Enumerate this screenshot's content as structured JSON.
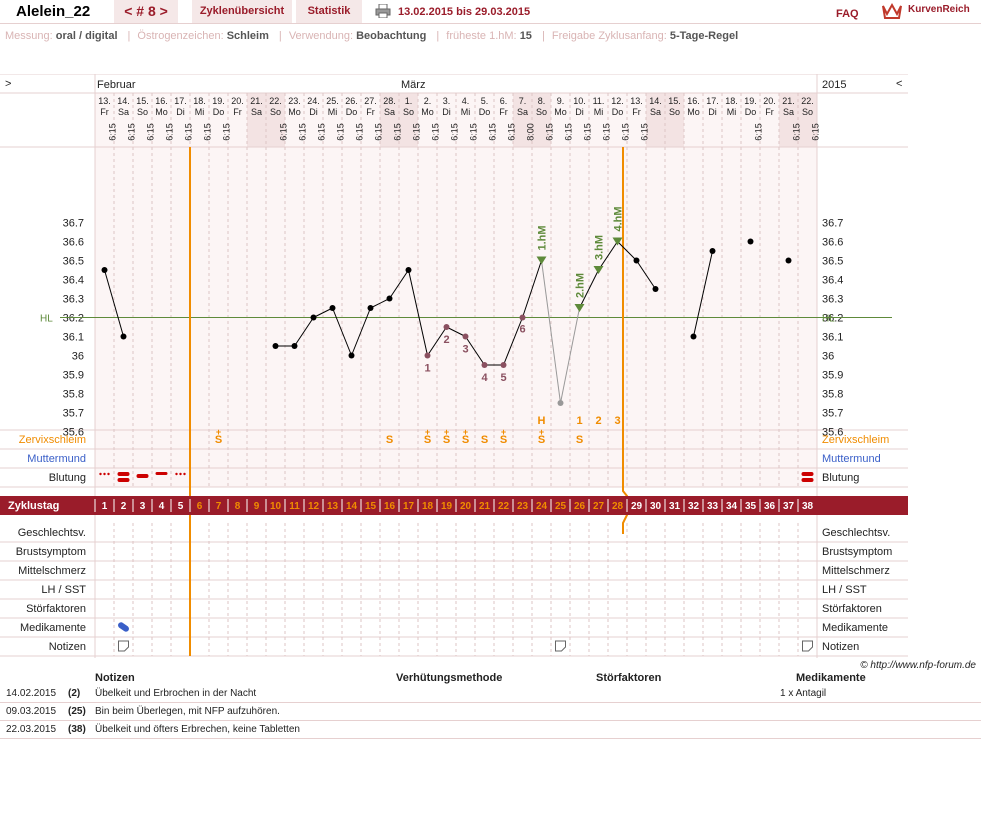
{
  "header": {
    "user": "Alelein_22",
    "cycle_nav": "< # 8 >",
    "tab_cycles": "Zyklenübersicht",
    "tab_stats": "Statistik",
    "date_range": "13.02.2015 bis 29.03.2015",
    "faq": "FAQ",
    "logo": "KurvenReich"
  },
  "info": [
    {
      "label": "Messung:",
      "value": "oral / digital"
    },
    {
      "label": "Östrogenzeichen:",
      "value": "Schleim"
    },
    {
      "label": "Verwendung:",
      "value": "Beobachtung"
    },
    {
      "label": "früheste 1.hM:",
      "value": "15"
    },
    {
      "label": "Freigabe Zyklusanfang:",
      "value": "5-Tage-Regel"
    }
  ],
  "chart_data": {
    "type": "line",
    "title": "",
    "nav_left": ">",
    "nav_right": "<",
    "year": "2015",
    "months": [
      {
        "label": "Februar",
        "start_day": 0
      },
      {
        "label": "März",
        "start_day": 16
      }
    ],
    "dates": [
      "13.",
      "14.",
      "15.",
      "16.",
      "17.",
      "18.",
      "19.",
      "20.",
      "21.",
      "22.",
      "23.",
      "24.",
      "25.",
      "26.",
      "27.",
      "28.",
      "1.",
      "2.",
      "3.",
      "4.",
      "5.",
      "6.",
      "7.",
      "8.",
      "9.",
      "10.",
      "11.",
      "12.",
      "13.",
      "14.",
      "15.",
      "16.",
      "17.",
      "18.",
      "19.",
      "20.",
      "21.",
      "22."
    ],
    "weekdays": [
      "Fr",
      "Sa",
      "So",
      "Mo",
      "Di",
      "Mi",
      "Do",
      "Fr",
      "Sa",
      "So",
      "Mo",
      "Di",
      "Mi",
      "Do",
      "Fr",
      "Sa",
      "So",
      "Mo",
      "Di",
      "Mi",
      "Do",
      "Fr",
      "Sa",
      "So",
      "Mo",
      "Di",
      "Mi",
      "Do",
      "Fr",
      "Sa",
      "So",
      "Mo",
      "Di",
      "Mi",
      "Do",
      "Fr",
      "Sa",
      "So"
    ],
    "times": [
      "6:15",
      "6:15",
      "6:15",
      "6:15",
      "6:15",
      "6:15",
      "6:15",
      "",
      "",
      "6:15",
      "6:15",
      "6:15",
      "6:15",
      "6:15",
      "6:15",
      "6:15",
      "6:15",
      "6:15",
      "6:15",
      "6:15",
      "6:15",
      "6:15",
      "8:00",
      "6:15",
      "6:15",
      "6:15",
      "6:15",
      "6:15",
      "6:15",
      "",
      "",
      "",
      "",
      "",
      "6:15",
      "",
      "6:15",
      "6:15"
    ],
    "weekend_days": [
      8,
      9,
      15,
      16,
      22,
      23,
      29,
      30,
      36,
      37
    ],
    "yticks": [
      35.6,
      35.7,
      35.8,
      35.9,
      36.0,
      36.1,
      36.2,
      36.3,
      36.4,
      36.5,
      36.6,
      36.7
    ],
    "ytick_labels": [
      "35.6",
      "35.7",
      "35.8",
      "35.9",
      "36",
      "36.1",
      "36.2",
      "36.3",
      "36.4",
      "36.5",
      "36.6",
      "36.7"
    ],
    "ylim": [
      35.5,
      36.8
    ],
    "coverline": {
      "label": "HL",
      "value": 36.2
    },
    "temps": [
      36.45,
      36.1,
      null,
      null,
      null,
      null,
      null,
      null,
      null,
      36.05,
      36.05,
      36.2,
      36.25,
      36.0,
      36.25,
      36.3,
      36.45,
      36.0,
      36.15,
      36.1,
      35.95,
      35.95,
      36.2,
      36.5,
      35.75,
      36.25,
      36.45,
      36.6,
      36.5,
      36.35,
      null,
      36.1,
      36.55,
      null,
      36.6,
      null,
      36.5,
      null
    ],
    "excluded": [
      24
    ],
    "low_labels": [
      {
        "day": 17,
        "label": "1"
      },
      {
        "day": 18,
        "label": "2"
      },
      {
        "day": 19,
        "label": "3"
      },
      {
        "day": 20,
        "label": "4"
      },
      {
        "day": 21,
        "label": "5"
      },
      {
        "day": 22,
        "label": "6"
      }
    ],
    "high_labels": [
      {
        "day": 23,
        "label": "1.hM"
      },
      {
        "day": 25,
        "label": "2.hM"
      },
      {
        "day": 26,
        "label": "3.hM"
      },
      {
        "day": 27,
        "label": "4.hM"
      }
    ],
    "mucus_high_labels": [
      {
        "day": 23,
        "label": "H"
      },
      {
        "day": 25,
        "label": "1"
      },
      {
        "day": 26,
        "label": "2"
      },
      {
        "day": 27,
        "label": "3"
      }
    ],
    "mucus": [
      {
        "day": 6,
        "sym": "S",
        "plus": true
      },
      {
        "day": 15,
        "sym": "S",
        "plus": false
      },
      {
        "day": 17,
        "sym": "S",
        "plus": true
      },
      {
        "day": 18,
        "sym": "S",
        "plus": true
      },
      {
        "day": 19,
        "sym": "S",
        "plus": true
      },
      {
        "day": 20,
        "sym": "S",
        "plus": false
      },
      {
        "day": 21,
        "sym": "S",
        "plus": true
      },
      {
        "day": 23,
        "sym": "S",
        "plus": true
      },
      {
        "day": 25,
        "sym": "S",
        "plus": false
      }
    ],
    "bleeding": [
      {
        "day": 0,
        "type": "spot"
      },
      {
        "day": 1,
        "type": "heavy"
      },
      {
        "day": 2,
        "type": "medium"
      },
      {
        "day": 3,
        "type": "light"
      },
      {
        "day": 4,
        "type": "spot"
      },
      {
        "day": 37,
        "type": "heavy"
      }
    ],
    "cycle_days": [
      "1",
      "2",
      "3",
      "4",
      "5",
      "6",
      "7",
      "8",
      "9",
      "10",
      "11",
      "12",
      "13",
      "14",
      "15",
      "16",
      "17",
      "18",
      "19",
      "20",
      "21",
      "22",
      "23",
      "24",
      "25",
      "26",
      "27",
      "28",
      "29",
      "30",
      "31",
      "32",
      "33",
      "34",
      "35",
      "36",
      "37",
      "38"
    ],
    "fertile_window": [
      5,
      27
    ],
    "rows": {
      "mucus": "Zervixschleim",
      "cervix": "Muttermund",
      "bleeding": "Blutung",
      "cycleday": "Zyklustag",
      "intercourse": "Geschlechtsv.",
      "breast": "Brustsymptom",
      "midpain": "Mittelschmerz",
      "lh": "LH / SST",
      "disturb": "Störfaktoren",
      "meds": "Medikamente",
      "notes": "Notizen"
    },
    "meds_days": [
      1
    ],
    "note_days": [
      1,
      24,
      37
    ],
    "start_line_day": 5,
    "evaluation_line_day": 27
  },
  "footer": {
    "copyright": "© http://www.nfp-forum.de",
    "headers": {
      "notes": "Notizen",
      "method": "Verhütungsmethode",
      "disturb": "Störfaktoren",
      "meds": "Medikamente"
    },
    "rows": [
      {
        "date": "14.02.2015",
        "day": "(2)",
        "note": "Übelkeit und Erbrochen in der Nacht",
        "meds": "1 x Antagil"
      },
      {
        "date": "09.03.2015",
        "day": "(25)",
        "note": "Bin beim Überlegen, mit NFP aufzuhören.",
        "meds": ""
      },
      {
        "date": "22.03.2015",
        "day": "(38)",
        "note": "Übelkeit und öfters Erbrechen, keine Tabletten",
        "meds": ""
      }
    ]
  },
  "colors": {
    "brand": "#9a1c2a",
    "orange": "#f08c00",
    "green": "#5e8a3a",
    "blue": "#3a5fc8",
    "grid": "#e6d0d0"
  }
}
